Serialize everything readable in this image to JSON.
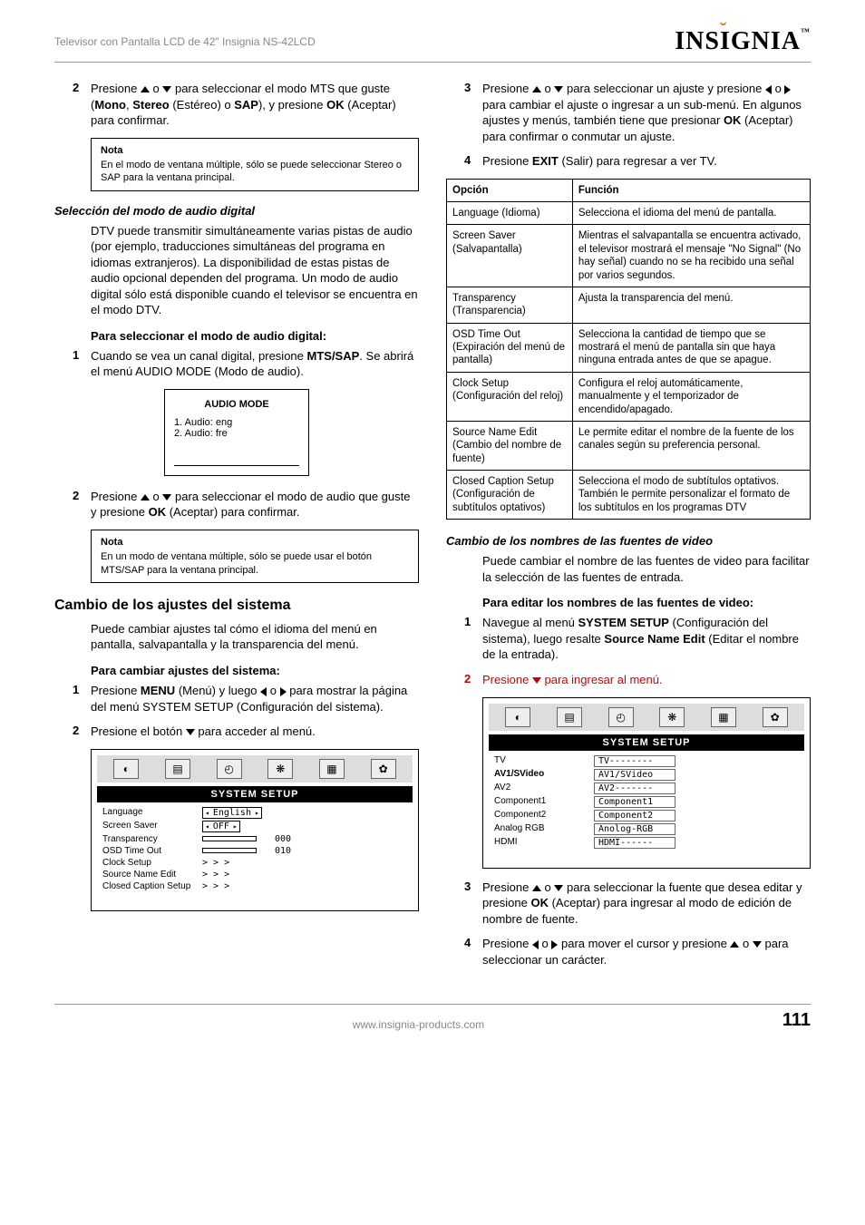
{
  "header": {
    "title": "Televisor con Pantalla LCD de 42\" Insignia NS-42LCD",
    "brand": "INSIGNIA"
  },
  "left": {
    "step2": "Presione ▲ o ▼ para seleccionar el modo MTS que guste (Mono, Stereo (Estéreo) o SAP), y presione OK (Aceptar) para confirmar.",
    "note1_title": "Nota",
    "note1": "En el modo de ventana múltiple, sólo se puede seleccionar Stereo o SAP para la ventana principal.",
    "h_digital": "Selección del modo de audio digital",
    "p_digital": "DTV puede transmitir simultáneamente varias pistas de audio (por ejemplo, traducciones simultáneas del programa en idiomas extranjeros). La disponibilidad de estas pistas de audio opcional dependen del programa. Un modo de audio digital sólo está disponible cuando el televisor se encuentra en el modo DTV.",
    "h_digital2": "Para seleccionar el modo de audio digital:",
    "d_step1": "Cuando se vea un canal digital, presione MTS/SAP. Se abrirá el menú AUDIO MODE (Modo de audio).",
    "audio_mode_title": "AUDIO MODE",
    "audio_mode_1": "1. Audio: eng",
    "audio_mode_2": "2. Audio: fre",
    "d_step2": "Presione ▲ o ▼ para seleccionar el modo de audio que guste y presione OK (Aceptar) para confirmar.",
    "note2_title": "Nota",
    "note2": "En un modo de ventana múltiple, sólo se puede usar el botón MTS/SAP para la ventana principal.",
    "h_system": "Cambio de los ajustes del sistema",
    "p_system": "Puede cambiar ajustes tal cómo el idioma del menú en pantalla, salvapantalla y la transparencia del menú.",
    "h_system2": "Para cambiar ajustes del sistema:",
    "s_step1": "Presione MENU (Menú) y luego ◀ o ▶ para mostrar la página del menú SYSTEM SETUP (Configuración del sistema).",
    "s_step2": "Presione el botón ▼ para acceder al menú.",
    "osd": {
      "title": "SYSTEM SETUP",
      "rows": [
        {
          "l": "Language",
          "v": "English",
          "type": "select"
        },
        {
          "l": "Screen Saver",
          "v": "OFF",
          "type": "select"
        },
        {
          "l": "Transparency",
          "v": "000",
          "type": "slider"
        },
        {
          "l": "OSD Time Out",
          "v": "010",
          "type": "slider"
        },
        {
          "l": "Clock Setup",
          "v": "> > >",
          "type": "arrow"
        },
        {
          "l": "Source Name Edit",
          "v": "> > >",
          "type": "arrow"
        },
        {
          "l": "Closed Caption Setup",
          "v": "> > >",
          "type": "arrow"
        }
      ]
    }
  },
  "right": {
    "step3": "Presione ▲ o ▼ para seleccionar un ajuste y presione ◀ o ▶ para cambiar el ajuste o ingresar a un sub-menú. En algunos ajustes y menús, también tiene que presionar OK (Aceptar) para confirmar o conmutar un ajuste.",
    "step4": "Presione EXIT (Salir) para regresar a ver TV.",
    "table_h1": "Opción",
    "table_h2": "Función",
    "table": [
      {
        "o": "Language (Idioma)",
        "f": "Selecciona el idioma del menú de pantalla."
      },
      {
        "o": "Screen Saver (Salvapantalla)",
        "f": "Mientras el salvapantalla se encuentra activado, el televisor mostrará el mensaje \"No Signal\" (No hay señal) cuando no se ha recibido una señal por varios segundos."
      },
      {
        "o": "Transparency (Transparencia)",
        "f": "Ajusta la transparencia del menú."
      },
      {
        "o": "OSD Time Out (Expiración del menú de pantalla)",
        "f": "Selecciona la cantidad de tiempo que se mostrará el menú de pantalla sin que haya ninguna entrada antes de que se apague."
      },
      {
        "o": "Clock Setup (Configuración del reloj)",
        "f": "Configura el reloj automáticamente, manualmente y el temporizador de encendido/apagado."
      },
      {
        "o": "Source Name Edit (Cambio del nombre de fuente)",
        "f": "Le permite editar el nombre de la fuente de los canales según su preferencia personal."
      },
      {
        "o": "Closed Caption Setup (Configuración de subtítulos optativos)",
        "f": "Selecciona el modo de subtítulos optativos. También le permite personalizar el formato de los subtítulos en los programas DTV"
      }
    ],
    "h_source": "Cambio de los nombres de las fuentes de video",
    "p_source": "Puede cambiar el nombre de las fuentes de video para facilitar la selección de las fuentes de entrada.",
    "h_source2": "Para editar los nombres de las fuentes de video:",
    "e_step1": "Navegue al menú SYSTEM SETUP (Configuración del sistema), luego resalte Source Name Edit (Editar el nombre de la entrada).",
    "e_step2": "Presione ▼ para ingresar al menú.",
    "osd2": {
      "title": "SYSTEM SETUP",
      "rows": [
        {
          "l": "TV",
          "v": "TV--------"
        },
        {
          "l": "AV1/SVideo",
          "v": "AV1/SVideo",
          "bold": true
        },
        {
          "l": "AV2",
          "v": "AV2-------"
        },
        {
          "l": "Component1",
          "v": "Component1"
        },
        {
          "l": "Component2",
          "v": "Component2"
        },
        {
          "l": "Analog RGB",
          "v": "Anolog-RGB"
        },
        {
          "l": "HDMI",
          "v": "HDMI------"
        }
      ]
    },
    "e_step3": "Presione ▲ o ▼ para seleccionar la fuente que desea editar y presione OK (Aceptar) para ingresar al modo de edición de nombre de fuente.",
    "e_step4": "Presione ◀ o ▶ para mover el cursor y presione ▲ o ▼ para seleccionar un carácter."
  },
  "footer": {
    "url": "www.insignia-products.com",
    "page": "111"
  }
}
